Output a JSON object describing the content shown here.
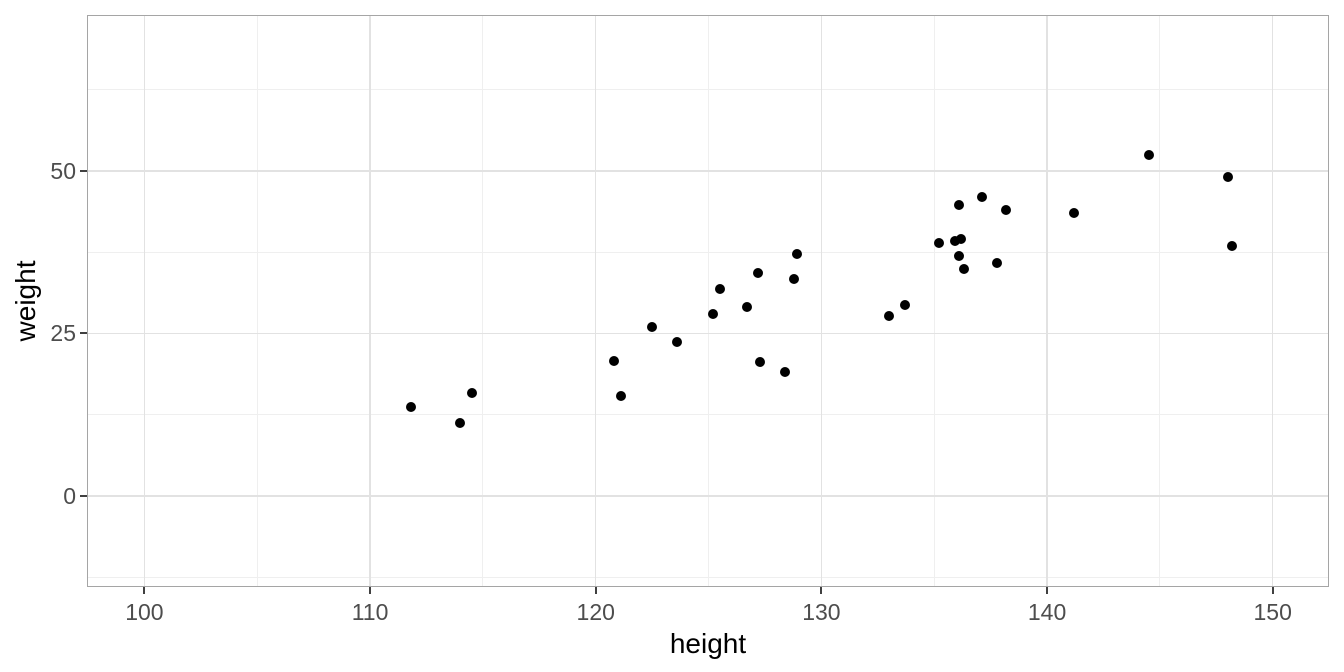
{
  "chart_data": {
    "type": "scatter",
    "title": "",
    "xlabel": "height",
    "ylabel": "weight",
    "x_ticks": [
      100,
      110,
      120,
      130,
      140,
      150
    ],
    "x_minor_ticks": [
      105,
      115,
      125,
      135,
      145
    ],
    "y_ticks": [
      0,
      25,
      50
    ],
    "y_minor_ticks": [
      -12.5,
      12.5,
      37.5,
      62.5
    ],
    "xlim": [
      97.5,
      152.45
    ],
    "ylim": [
      -13.85,
      73.85
    ],
    "grid": "major+minor",
    "legend": false,
    "series": [
      {
        "name": "points",
        "points_hw": [
          [
            111.8,
            13.7
          ],
          [
            114.0,
            11.2
          ],
          [
            114.5,
            15.9
          ],
          [
            120.8,
            20.8
          ],
          [
            121.1,
            15.4
          ],
          [
            122.5,
            26.0
          ],
          [
            123.6,
            23.7
          ],
          [
            125.2,
            28.0
          ],
          [
            125.5,
            31.9
          ],
          [
            126.7,
            29.0
          ],
          [
            127.2,
            34.3
          ],
          [
            127.3,
            20.6
          ],
          [
            128.4,
            19.0
          ],
          [
            128.8,
            33.4
          ],
          [
            128.9,
            37.2
          ],
          [
            133.0,
            27.7
          ],
          [
            133.7,
            29.4
          ],
          [
            135.2,
            39.0
          ],
          [
            135.9,
            39.3
          ],
          [
            136.1,
            37.0
          ],
          [
            136.1,
            44.7
          ],
          [
            136.2,
            39.6
          ],
          [
            136.3,
            35.0
          ],
          [
            137.1,
            46.0
          ],
          [
            137.8,
            35.8
          ],
          [
            138.2,
            44.0
          ],
          [
            141.2,
            43.6
          ],
          [
            144.5,
            52.5
          ],
          [
            148.0,
            49.1
          ],
          [
            148.2,
            38.5
          ]
        ]
      }
    ]
  },
  "colors": {
    "background": "#ffffff",
    "panel_background": "#ffffff",
    "panel_border": "#a5a5a5",
    "grid_major": "#e2e2e2",
    "grid_minor": "#efefef",
    "tick_mark": "#404040",
    "tick_label": "#4d4d4d",
    "axis_title": "#000000",
    "point": "#000000"
  }
}
